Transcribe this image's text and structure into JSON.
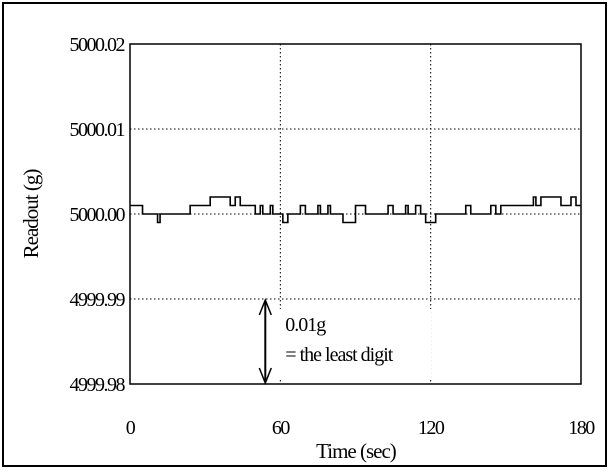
{
  "chart_data": {
    "type": "line",
    "title": "",
    "xlabel": "Time (sec)",
    "ylabel": "Readout (g)",
    "xlim": [
      0,
      180
    ],
    "ylim": [
      4999.98,
      5000.02
    ],
    "xticks": [
      0,
      60,
      120,
      180
    ],
    "xtick_labels": [
      "0",
      "60",
      "120",
      "180"
    ],
    "yticks": [
      4999.98,
      4999.99,
      5000.0,
      5000.01,
      5000.02
    ],
    "ytick_labels": [
      "4999.98",
      "4999.99",
      "5000.00",
      "5000.01",
      "5000.02"
    ],
    "grid": true,
    "grid_style": "dotted",
    "series_color": "#000000",
    "series": [
      {
        "step": "post",
        "x": [
          0,
          3,
          5,
          10,
          11,
          12,
          20,
          21,
          22,
          24,
          26,
          28,
          32,
          34,
          36,
          40,
          42,
          44,
          48,
          50,
          52,
          53,
          55,
          56,
          57,
          58,
          60,
          61,
          63,
          68,
          70,
          72,
          75,
          76,
          78,
          79,
          80,
          83,
          84,
          85,
          88,
          90,
          94,
          98,
          100,
          102,
          103,
          105,
          108,
          110,
          111,
          112,
          114,
          116,
          117,
          118,
          122,
          124,
          126,
          130,
          132,
          134,
          136,
          139,
          141,
          144,
          146,
          148,
          150,
          154,
          156,
          160,
          161,
          162,
          164,
          166,
          168,
          170,
          172,
          176,
          177,
          178,
          180
        ],
        "y": [
          5000.001,
          5000.001,
          5000.0,
          5000.0,
          4999.999,
          5000.0,
          5000.0,
          5000.0,
          5000.0,
          5000.001,
          5000.001,
          5000.001,
          5000.002,
          5000.002,
          5000.002,
          5000.001,
          5000.002,
          5000.001,
          5000.001,
          5000.0,
          5000.001,
          5000.0,
          5000.0,
          5000.001,
          5000.0,
          5000.0,
          5000.0,
          4999.999,
          5000.0,
          5000.001,
          5000.0,
          5000.0,
          5000.001,
          5000.0,
          5000.0,
          5000.001,
          5000.0,
          5000.0,
          5000.0,
          4999.999,
          4999.999,
          5000.001,
          5000.0,
          5000.0,
          5000.0,
          5000.0,
          5000.001,
          5000.0,
          5000.0,
          5000.001,
          5000.0,
          5000.0,
          5000.001,
          5000.0,
          5000.0,
          4999.999,
          5000.0,
          5000.0,
          5000.0,
          5000.0,
          5000.0,
          5000.001,
          5000.0,
          5000.0,
          5000.0,
          5000.001,
          5000.0,
          5000.001,
          5000.001,
          5000.001,
          5000.001,
          5000.001,
          5000.002,
          5000.001,
          5000.002,
          5000.002,
          5000.002,
          5000.002,
          5000.001,
          5000.002,
          5000.002,
          5000.001,
          5000.001
        ]
      }
    ],
    "annotations": [
      {
        "type": "double-arrow",
        "x": 54,
        "y_from": 4999.98,
        "y_to": 4999.99,
        "text_lines": [
          "0.01g",
          "= the least digit"
        ]
      }
    ]
  }
}
